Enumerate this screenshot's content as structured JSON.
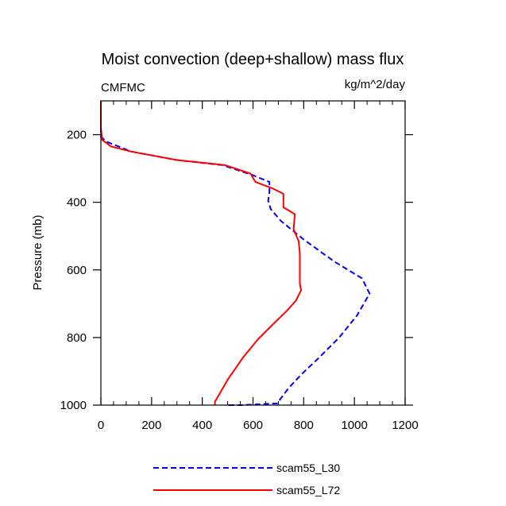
{
  "chart_data": {
    "type": "line",
    "title": "Moist convection (deep+shallow) mass flux",
    "left_string": "CMFMC",
    "right_string": "kg/m^2/day",
    "xlabel": "",
    "ylabel": "Pressure (mb)",
    "xlim": [
      0,
      1200
    ],
    "ylim": [
      100,
      1000
    ],
    "y_reversed": true,
    "x_ticks": [
      0,
      200,
      400,
      600,
      800,
      1000,
      1200
    ],
    "x_tick_labels": [
      "0",
      "200",
      "400",
      "600",
      "800",
      "1000",
      "1200"
    ],
    "y_ticks": [
      200,
      400,
      600,
      800,
      1000
    ],
    "y_tick_labels": [
      "200",
      "400",
      "600",
      "800",
      "1000"
    ],
    "grid": false,
    "legend_position": "bottom",
    "series": [
      {
        "name": "scam55_L30",
        "color": "#0000ff",
        "style": "dashed",
        "points": [
          [
            0,
            100
          ],
          [
            0,
            180
          ],
          [
            0,
            205
          ],
          [
            20,
            220
          ],
          [
            120,
            250
          ],
          [
            300,
            275
          ],
          [
            480,
            290
          ],
          [
            600,
            320
          ],
          [
            665,
            340
          ],
          [
            665,
            370
          ],
          [
            660,
            395
          ],
          [
            670,
            420
          ],
          [
            710,
            455
          ],
          [
            800,
            510
          ],
          [
            920,
            575
          ],
          [
            1030,
            625
          ],
          [
            1060,
            670
          ],
          [
            1010,
            735
          ],
          [
            940,
            800
          ],
          [
            860,
            860
          ],
          [
            790,
            910
          ],
          [
            740,
            950
          ],
          [
            695,
            995
          ],
          [
            550,
            1000
          ],
          [
            490,
            1000
          ]
        ]
      },
      {
        "name": "scam55_L72",
        "color": "#ff0000",
        "style": "solid",
        "points": [
          [
            0,
            100
          ],
          [
            0,
            180
          ],
          [
            5,
            215
          ],
          [
            40,
            235
          ],
          [
            120,
            250
          ],
          [
            300,
            275
          ],
          [
            490,
            290
          ],
          [
            590,
            315
          ],
          [
            610,
            340
          ],
          [
            680,
            360
          ],
          [
            720,
            375
          ],
          [
            720,
            415
          ],
          [
            765,
            435
          ],
          [
            760,
            480
          ],
          [
            780,
            515
          ],
          [
            785,
            550
          ],
          [
            785,
            580
          ],
          [
            785,
            640
          ],
          [
            790,
            660
          ],
          [
            770,
            690
          ],
          [
            735,
            720
          ],
          [
            680,
            760
          ],
          [
            620,
            805
          ],
          [
            560,
            860
          ],
          [
            500,
            925
          ],
          [
            450,
            990
          ],
          [
            450,
            1000
          ]
        ]
      }
    ]
  }
}
